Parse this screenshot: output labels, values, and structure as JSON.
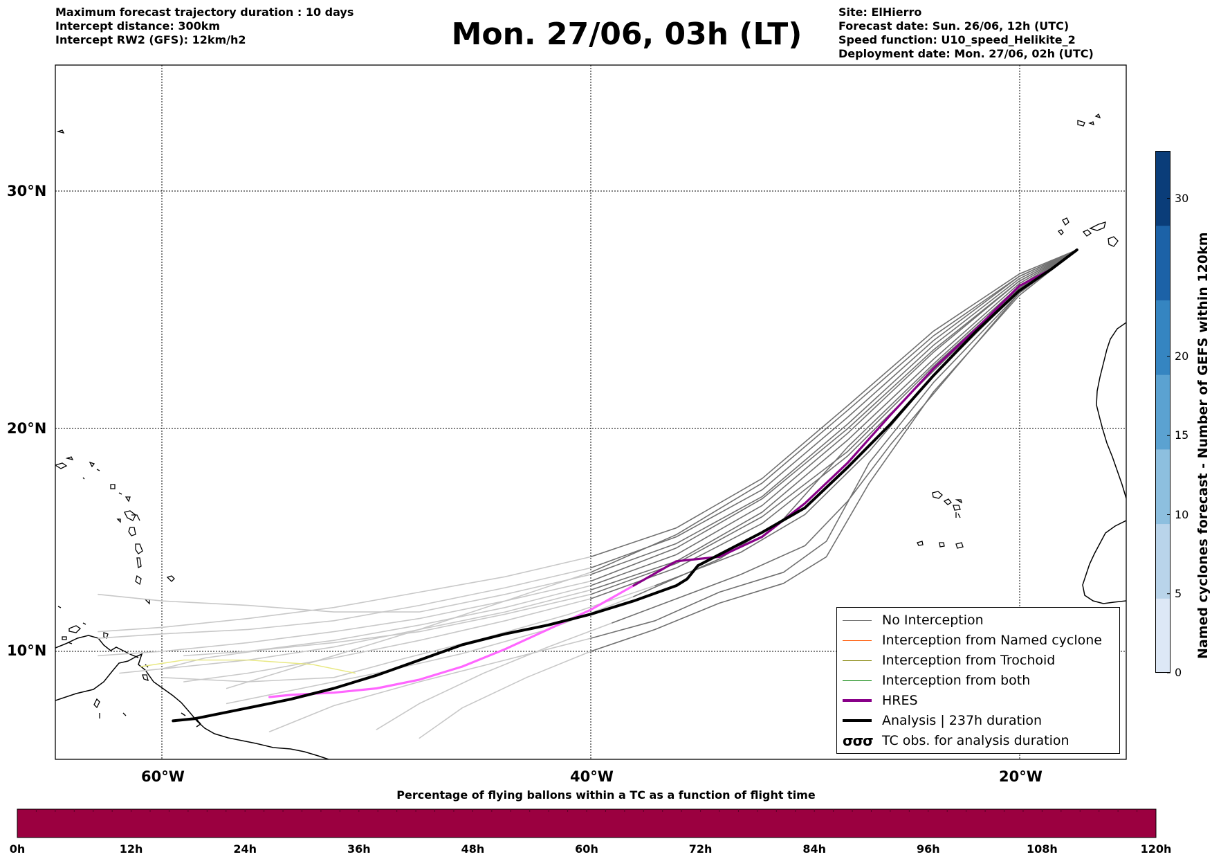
{
  "header": {
    "info_left": [
      "Maximum forecast trajectory duration : 10 days",
      "Intercept distance: 300km",
      "Intercept RW2 (GFS):  12km/h2"
    ],
    "title": "Mon. 27/06, 03h (LT)",
    "info_right": [
      "Site: ElHierro",
      "Forecast date: Sun. 26/06, 12h (UTC)",
      "Speed function: U10_speed_Helikite_2",
      "Deployment date: Mon. 27/06, 02h (UTC)"
    ]
  },
  "map": {
    "lat_labels": [
      "30°N",
      "20°N",
      "10°N"
    ],
    "lon_labels": [
      "60°W",
      "40°W",
      "20°W"
    ],
    "lat_range": [
      5.5,
      34.8
    ],
    "lon_range": [
      -65,
      -15
    ],
    "grid": "dotted",
    "colors": {
      "no_interception": "#707070",
      "named_cyclone": "#ff5500",
      "trochoid": "#808000",
      "both": "#008000",
      "hres": "#880088",
      "hres_late": "#ff66ff",
      "analysis": "#000000",
      "late_members": "#c8c8c8",
      "yellow_member": "#e8e880"
    },
    "hres_track": [
      [
        -17.3,
        27.6
      ],
      [
        -18.5,
        26.8
      ],
      [
        -20,
        26.1
      ],
      [
        -22,
        24.3
      ],
      [
        -24,
        22.6
      ],
      [
        -26,
        20.6
      ],
      [
        -28,
        18.5
      ],
      [
        -30,
        16.7
      ],
      [
        -32,
        15.2
      ],
      [
        -34,
        14.3
      ],
      [
        -36,
        14.1
      ],
      [
        -38,
        13.0
      ],
      [
        -40,
        11.9
      ],
      [
        -42,
        11.0
      ],
      [
        -44,
        10.1
      ],
      [
        -46,
        9.3
      ],
      [
        -48,
        8.7
      ],
      [
        -50,
        8.3
      ],
      [
        -52,
        8.1
      ],
      [
        -54,
        8.0
      ],
      [
        -55,
        7.9
      ]
    ],
    "analysis_track": [
      [
        -17.3,
        27.6
      ],
      [
        -18.5,
        26.8
      ],
      [
        -20,
        25.9
      ],
      [
        -22,
        24.2
      ],
      [
        -24,
        22.3
      ],
      [
        -26,
        20.2
      ],
      [
        -28,
        18.3
      ],
      [
        -30,
        16.5
      ],
      [
        -32,
        15.4
      ],
      [
        -34,
        14.4
      ],
      [
        -35,
        13.9
      ],
      [
        -35.5,
        13.3
      ],
      [
        -36,
        13.0
      ],
      [
        -38,
        12.3
      ],
      [
        -40,
        11.7
      ],
      [
        -42,
        11.2
      ],
      [
        -44,
        10.8
      ],
      [
        -46,
        10.3
      ],
      [
        -48,
        9.6
      ],
      [
        -50,
        8.9
      ],
      [
        -52,
        8.3
      ],
      [
        -54,
        7.8
      ],
      [
        -55,
        7.6
      ],
      [
        -57,
        7.2
      ],
      [
        -58.5,
        6.9
      ],
      [
        -59.5,
        6.8
      ]
    ],
    "ensemble_members": [
      [
        [
          -17.3,
          27.6
        ],
        [
          -20,
          26.5
        ],
        [
          -24,
          23.8
        ],
        [
          -28,
          20.5
        ],
        [
          -32,
          17.3
        ],
        [
          -36,
          15.2
        ],
        [
          -40,
          13.8
        ],
        [
          -44,
          12.9
        ],
        [
          -48,
          12.1
        ],
        [
          -52,
          11.4
        ],
        [
          -56,
          11.0
        ],
        [
          -60,
          10.8
        ],
        [
          -63,
          10.6
        ]
      ],
      [
        [
          -17.3,
          27.6
        ],
        [
          -20,
          26.3
        ],
        [
          -24,
          23.3
        ],
        [
          -28,
          19.8
        ],
        [
          -32,
          16.6
        ],
        [
          -36,
          14.4
        ],
        [
          -40,
          13.0
        ],
        [
          -44,
          12.0
        ],
        [
          -48,
          11.2
        ],
        [
          -52,
          10.5
        ],
        [
          -56,
          10.0
        ],
        [
          -59,
          9.8
        ]
      ],
      [
        [
          -17.3,
          27.6
        ],
        [
          -20,
          26.0
        ],
        [
          -24,
          22.5
        ],
        [
          -28,
          18.8
        ],
        [
          -32,
          15.8
        ],
        [
          -36,
          13.8
        ],
        [
          -40,
          12.4
        ],
        [
          -44,
          11.4
        ],
        [
          -48,
          10.5
        ],
        [
          -52,
          9.7
        ],
        [
          -56,
          9.0
        ],
        [
          -59,
          8.6
        ]
      ],
      [
        [
          -17.3,
          27.6
        ],
        [
          -20,
          26.4
        ],
        [
          -24,
          23.6
        ],
        [
          -28,
          20.2
        ],
        [
          -32,
          17.0
        ],
        [
          -36,
          14.9
        ],
        [
          -40,
          13.5
        ],
        [
          -44,
          12.6
        ],
        [
          -48,
          11.8
        ],
        [
          -52,
          11.8
        ],
        [
          -56,
          12.1
        ],
        [
          -60,
          12.3
        ],
        [
          -63,
          12.6
        ]
      ],
      [
        [
          -17.3,
          27.6
        ],
        [
          -20,
          25.8
        ],
        [
          -24,
          22.0
        ],
        [
          -27,
          18.5
        ],
        [
          -29,
          15.0
        ],
        [
          -31,
          13.6
        ],
        [
          -34,
          12.7
        ],
        [
          -37,
          11.4
        ],
        [
          -40,
          10.6
        ],
        [
          -44,
          9.6
        ],
        [
          -48,
          8.6
        ],
        [
          -52,
          7.5
        ],
        [
          -55,
          6.3
        ]
      ],
      [
        [
          -17.3,
          27.6
        ],
        [
          -20,
          25.7
        ],
        [
          -24,
          21.6
        ],
        [
          -27,
          17.6
        ],
        [
          -29,
          14.3
        ],
        [
          -31,
          13.1
        ],
        [
          -34,
          12.2
        ],
        [
          -37,
          11.0
        ],
        [
          -40,
          10.0
        ],
        [
          -43,
          8.8
        ],
        [
          -46,
          7.4
        ],
        [
          -48,
          6.0
        ]
      ],
      [
        [
          -17.3,
          27.6
        ],
        [
          -20,
          26.6
        ],
        [
          -24,
          24.2
        ],
        [
          -28,
          21.0
        ],
        [
          -32,
          17.8
        ],
        [
          -36,
          15.6
        ],
        [
          -40,
          14.3
        ],
        [
          -44,
          13.4
        ],
        [
          -48,
          12.7
        ],
        [
          -52,
          12.0
        ],
        [
          -56,
          11.5
        ],
        [
          -60,
          11.1
        ],
        [
          -63,
          10.9
        ]
      ],
      [
        [
          -17.3,
          27.6
        ],
        [
          -20,
          26.2
        ],
        [
          -24,
          23.0
        ],
        [
          -28,
          19.5
        ],
        [
          -32,
          16.3
        ],
        [
          -36,
          14.1
        ],
        [
          -40,
          12.8
        ],
        [
          -44,
          11.8
        ],
        [
          -48,
          11.0
        ],
        [
          -52,
          10.2
        ],
        [
          -56,
          9.6
        ],
        [
          -60,
          9.2
        ]
      ],
      [
        [
          -17.3,
          27.6
        ],
        [
          -20,
          26.1
        ],
        [
          -24,
          22.8
        ],
        [
          -28,
          19.2
        ],
        [
          -31,
          16.0
        ],
        [
          -34,
          14.2
        ],
        [
          -38,
          12.5
        ],
        [
          -42,
          11.0
        ],
        [
          -46,
          9.9
        ],
        [
          -50,
          9.0
        ],
        [
          -54,
          8.2
        ],
        [
          -57,
          7.6
        ]
      ],
      [
        [
          -17.3,
          27.6
        ],
        [
          -20,
          26.5
        ],
        [
          -24,
          24.0
        ],
        [
          -28,
          20.8
        ],
        [
          -32,
          17.6
        ],
        [
          -36,
          15.3
        ],
        [
          -40,
          13.6
        ],
        [
          -44,
          12.3
        ],
        [
          -48,
          11.0
        ],
        [
          -52,
          9.8
        ],
        [
          -55,
          8.9
        ],
        [
          -57,
          8.3
        ]
      ],
      [
        [
          -17.3,
          27.6
        ],
        [
          -20,
          25.9
        ],
        [
          -24,
          22.3
        ],
        [
          -27,
          19.0
        ],
        [
          -30,
          16.2
        ],
        [
          -33,
          14.5
        ],
        [
          -37,
          13.0
        ],
        [
          -41,
          11.7
        ],
        [
          -45,
          10.6
        ],
        [
          -49,
          9.6
        ],
        [
          -52,
          8.8
        ],
        [
          -56,
          8.6
        ],
        [
          -60,
          8.8
        ]
      ],
      [
        [
          -17.3,
          27.6
        ],
        [
          -20,
          26.3
        ],
        [
          -24,
          23.4
        ],
        [
          -28,
          20.0
        ],
        [
          -32,
          16.9
        ],
        [
          -36,
          14.7
        ],
        [
          -40,
          13.2
        ],
        [
          -44,
          12.3
        ],
        [
          -48,
          11.5
        ],
        [
          -52,
          10.9
        ],
        [
          -56,
          10.4
        ],
        [
          -60,
          10.0
        ],
        [
          -63,
          9.8
        ]
      ],
      [
        [
          -17.3,
          27.6
        ],
        [
          -20,
          25.8
        ],
        [
          -23,
          22.6
        ],
        [
          -26,
          19.3
        ],
        [
          -28,
          16.8
        ],
        [
          -30,
          14.8
        ],
        [
          -33,
          13.5
        ],
        [
          -36,
          12.4
        ],
        [
          -39,
          11.3
        ],
        [
          -42,
          10.2
        ],
        [
          -45,
          9.0
        ],
        [
          -48,
          7.6
        ],
        [
          -50,
          6.4
        ]
      ],
      [
        [
          -17.3,
          27.6
        ],
        [
          -20,
          26.0
        ],
        [
          -24,
          22.7
        ],
        [
          -28,
          19.0
        ],
        [
          -32,
          16.1
        ],
        [
          -36,
          14.0
        ],
        [
          -40,
          12.6
        ],
        [
          -44,
          11.7
        ],
        [
          -48,
          10.9
        ],
        [
          -52,
          10.4
        ],
        [
          -55,
          10.1
        ],
        [
          -58,
          9.7
        ],
        [
          -60,
          9.2
        ],
        [
          -62,
          9.0
        ]
      ]
    ]
  },
  "legend": {
    "items": [
      "No Interception",
      "Interception from Named cyclone",
      "Interception from Trochoid",
      "Interception from both",
      "HRES",
      "Analysis | 237h duration"
    ],
    "tc_symbol": "σσσ",
    "tc_label": "TC obs. for analysis duration"
  },
  "colorbar": {
    "label": "Named cyclones forecast - Number of GEFS within 120km",
    "range": [
      0,
      33
    ],
    "ticks": [
      "0",
      "5",
      "10",
      "15",
      "20",
      "30"
    ],
    "tick_values": [
      0,
      5,
      10,
      15,
      20,
      30
    ],
    "colors": [
      "#dde8f6",
      "#b9d4ea",
      "#8dbfdf",
      "#5ba2d1",
      "#3585c1",
      "#1c62a7",
      "#0a3d79"
    ]
  },
  "bottom_bar": {
    "title": "Percentage of flying ballons within a TC as a function of flight time",
    "fill_color": "#9b0040",
    "ticks": [
      "0h",
      "12h",
      "24h",
      "36h",
      "48h",
      "60h",
      "72h",
      "84h",
      "96h",
      "108h",
      "120h"
    ]
  }
}
